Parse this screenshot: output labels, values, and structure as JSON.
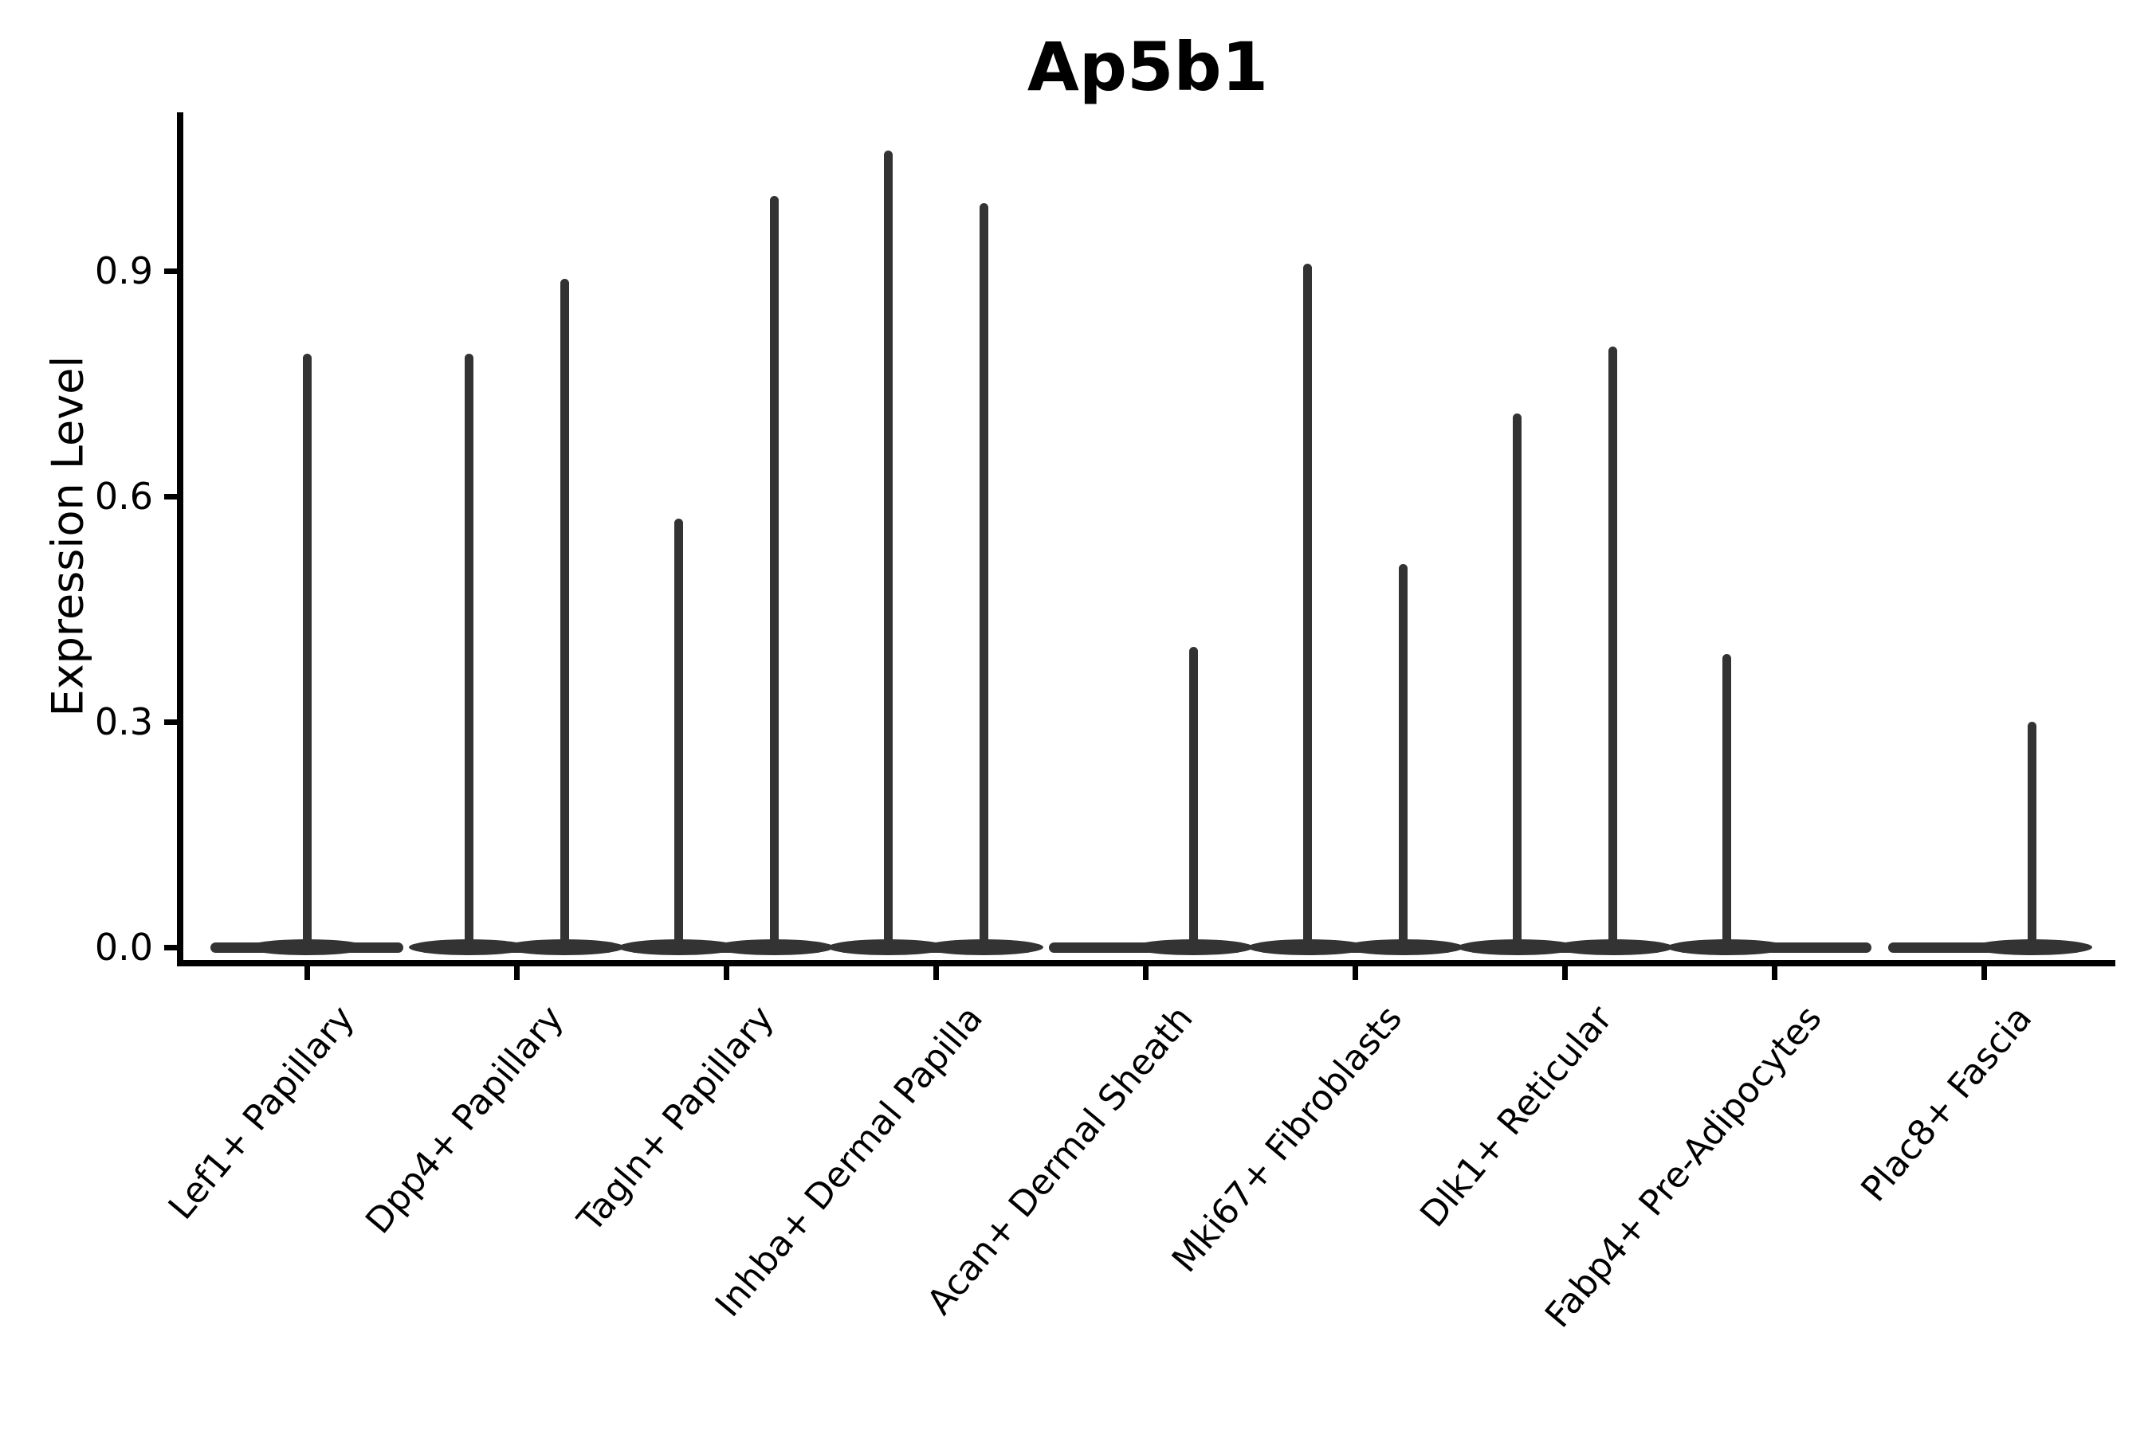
{
  "title": "Ap5b1",
  "y_axis": {
    "label": "Expression Level"
  },
  "colors": {
    "violin": "#333333",
    "axis": "#000000",
    "text": "#000000",
    "background": "#ffffff"
  },
  "chart_data": {
    "type": "violin",
    "title": "Ap5b1",
    "xlabel": "",
    "ylabel": "Expression Level",
    "yticks": [
      0.0,
      0.3,
      0.6,
      0.9
    ],
    "ylim": [
      0,
      1.11
    ],
    "grid": false,
    "legend": "none",
    "description": "Violin plot of Ap5b1 expression; each cell-type group shows a flat baseline at 0 (most cells have zero expression) with thin spikes rising to the maximum expression value; several groups contain two dodged violins (left/right).",
    "categories": [
      "Lef1+ Papillary",
      "Dpp4+ Papillary",
      "Tagln+ Papillary",
      "Inhba+ Dermal Papilla",
      "Acan+ Dermal Sheath",
      "Mki67+ Fibroblasts",
      "Dlk1+ Reticular",
      "Fabp4+ Pre-Adipocytes",
      "Plac8+ Fascia"
    ],
    "violins": [
      {
        "category": "Lef1+ Papillary",
        "spikes": [
          {
            "dodge": "center",
            "max": 0.79
          }
        ]
      },
      {
        "category": "Dpp4+ Papillary",
        "spikes": [
          {
            "dodge": "left",
            "max": 0.79
          },
          {
            "dodge": "right",
            "max": 0.89
          }
        ]
      },
      {
        "category": "Tagln+ Papillary",
        "spikes": [
          {
            "dodge": "left",
            "max": 0.57
          },
          {
            "dodge": "right",
            "max": 1.0
          }
        ]
      },
      {
        "category": "Inhba+ Dermal Papilla",
        "spikes": [
          {
            "dodge": "left",
            "max": 1.06
          },
          {
            "dodge": "right",
            "max": 0.99
          }
        ]
      },
      {
        "category": "Acan+ Dermal Sheath",
        "spikes": [
          {
            "dodge": "right",
            "max": 0.4
          }
        ]
      },
      {
        "category": "Mki67+ Fibroblasts",
        "spikes": [
          {
            "dodge": "left",
            "max": 0.91
          },
          {
            "dodge": "right",
            "max": 0.51
          }
        ]
      },
      {
        "category": "Dlk1+ Reticular",
        "spikes": [
          {
            "dodge": "left",
            "max": 0.71
          },
          {
            "dodge": "right",
            "max": 0.8
          }
        ]
      },
      {
        "category": "Fabp4+ Pre-Adipocytes",
        "spikes": [
          {
            "dodge": "left",
            "max": 0.39
          }
        ]
      },
      {
        "category": "Plac8+ Fascia",
        "spikes": [
          {
            "dodge": "right",
            "max": 0.3
          }
        ]
      }
    ]
  }
}
